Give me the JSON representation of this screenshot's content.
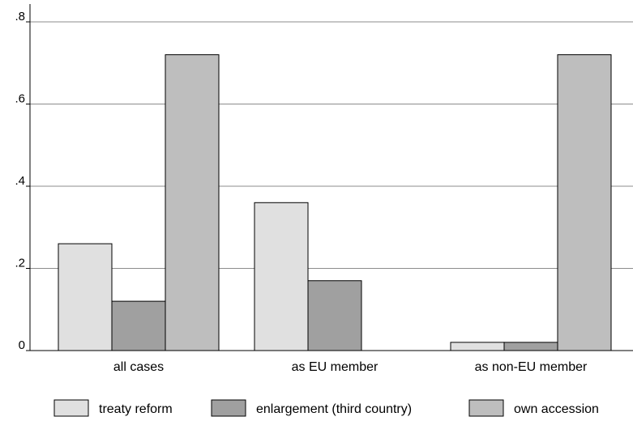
{
  "chart_data": {
    "type": "bar",
    "categories": [
      "all cases",
      "as EU member",
      "as non-EU member"
    ],
    "series": [
      {
        "name": "treaty reform",
        "values": [
          0.26,
          0.36,
          0.02
        ],
        "color": "#e0e0e0"
      },
      {
        "name": "enlargement (third country)",
        "values": [
          0.12,
          0.17,
          0.02
        ],
        "color": "#a0a0a0"
      },
      {
        "name": "own accession",
        "values": [
          0.72,
          0.0,
          0.72
        ],
        "color": "#bebebe"
      }
    ],
    "yticks": [
      {
        "value": 0,
        "label": "0"
      },
      {
        "value": 0.2,
        "label": ".2"
      },
      {
        "value": 0.4,
        "label": ".4"
      },
      {
        "value": 0.6,
        "label": ".6"
      },
      {
        "value": 0.8,
        "label": ".8"
      }
    ],
    "ylim": [
      0,
      0.8
    ],
    "grid": true,
    "legend_position": "bottom"
  }
}
